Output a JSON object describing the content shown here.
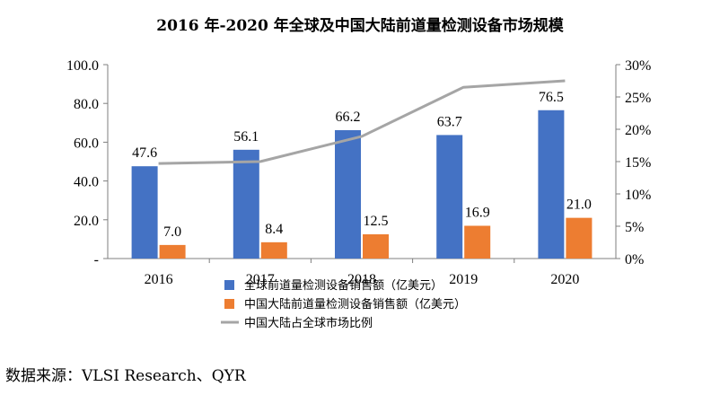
{
  "title": "2016 年-2020 年全球及中国大陆前道量检测设备市场规模",
  "source": "数据来源：VLSI Research、QYR",
  "colors": {
    "global": "#4472C4",
    "china": "#ED7D31",
    "ratio": "#A5A5A5"
  },
  "chart_data": {
    "type": "bar",
    "categories": [
      "2016",
      "2017",
      "2018",
      "2019",
      "2020"
    ],
    "series": [
      {
        "name": "全球前道量检测设备销售额（亿美元）",
        "type": "bar",
        "axis": "left",
        "values": [
          47.6,
          56.1,
          66.2,
          63.7,
          76.5
        ],
        "labels": [
          "47.6",
          "56.1",
          "66.2",
          "63.7",
          "76.5"
        ]
      },
      {
        "name": "中国大陆前道量检测设备销售额（亿美元）",
        "type": "bar",
        "axis": "left",
        "values": [
          7.0,
          8.4,
          12.5,
          16.9,
          21.0
        ],
        "labels": [
          "7.0",
          "8.4",
          "12.5",
          "16.9",
          "21.0"
        ]
      },
      {
        "name": "中国大陆占全球市场比例",
        "type": "line",
        "axis": "right",
        "values": [
          14.7,
          15.0,
          18.9,
          26.5,
          27.5
        ]
      }
    ],
    "y_left": {
      "ylim": [
        0,
        100
      ],
      "ticks": [
        "-",
        "20.0",
        "40.0",
        "60.0",
        "80.0",
        "100.0"
      ]
    },
    "y_right": {
      "ylim": [
        0,
        30
      ],
      "ticks": [
        "0%",
        "5%",
        "10%",
        "15%",
        "20%",
        "25%",
        "30%"
      ]
    },
    "grid": false,
    "legend": "bottom"
  }
}
